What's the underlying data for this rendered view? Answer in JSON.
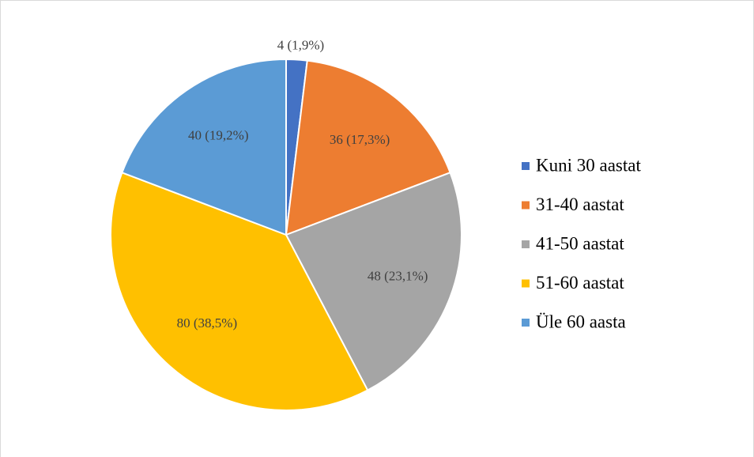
{
  "chart_data": {
    "type": "pie",
    "categories": [
      "Kuni 30 aastat",
      "31-40 aastat",
      "41-50 aastat",
      "51-60 aastat",
      "Üle 60 aasta"
    ],
    "values": [
      4,
      36,
      48,
      80,
      40
    ],
    "value_labels": [
      "4 (1,9%)",
      "36 (17,3%)",
      "48 (23,1%)",
      "80 (38,5%)",
      "40 (19,2%)"
    ],
    "colors": [
      "#4472c4",
      "#ed7d31",
      "#a5a5a5",
      "#ffc000",
      "#5b9bd5"
    ],
    "legend": "right"
  }
}
